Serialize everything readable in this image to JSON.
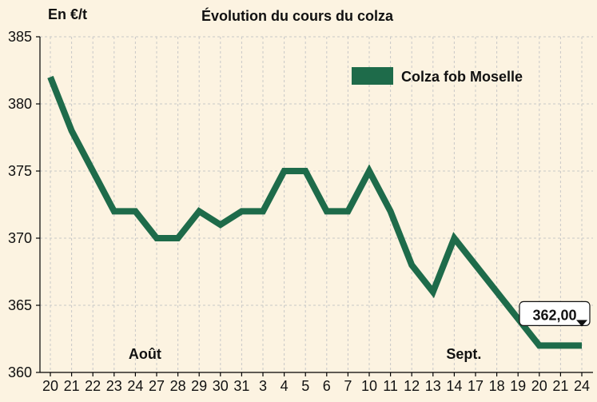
{
  "chart_data": {
    "type": "line",
    "title": "Évolution du cours du colza",
    "ylabel": "En €/t",
    "xlabel": "",
    "ylim": [
      360,
      385
    ],
    "yticks": [
      360,
      365,
      370,
      375,
      380,
      385
    ],
    "grid": true,
    "legend_position": "top-right",
    "x": [
      "20",
      "21",
      "22",
      "23",
      "24",
      "27",
      "28",
      "29",
      "30",
      "31",
      "3",
      "4",
      "5",
      "6",
      "7",
      "10",
      "11",
      "12",
      "13",
      "14",
      "17",
      "18",
      "19",
      "20",
      "21",
      "24"
    ],
    "month_labels": [
      {
        "text": "Août",
        "at_index": 4
      },
      {
        "text": "Sept.",
        "at_index": 19
      }
    ],
    "series": [
      {
        "name": "Colza fob Moselle",
        "color": "#1e6b4a",
        "values": [
          382,
          378,
          375,
          372,
          372,
          370,
          370,
          372,
          371,
          372,
          372,
          375,
          375,
          372,
          372,
          375,
          372,
          368,
          366,
          370,
          368,
          366,
          364,
          362,
          362,
          362
        ]
      }
    ],
    "annotations": [
      {
        "text": "362,00",
        "at_index": 25
      }
    ]
  },
  "colors": {
    "background": "#fcf3e1",
    "grid": "#c8c8c8",
    "axis": "#000000",
    "series": "#1e6b4a"
  }
}
